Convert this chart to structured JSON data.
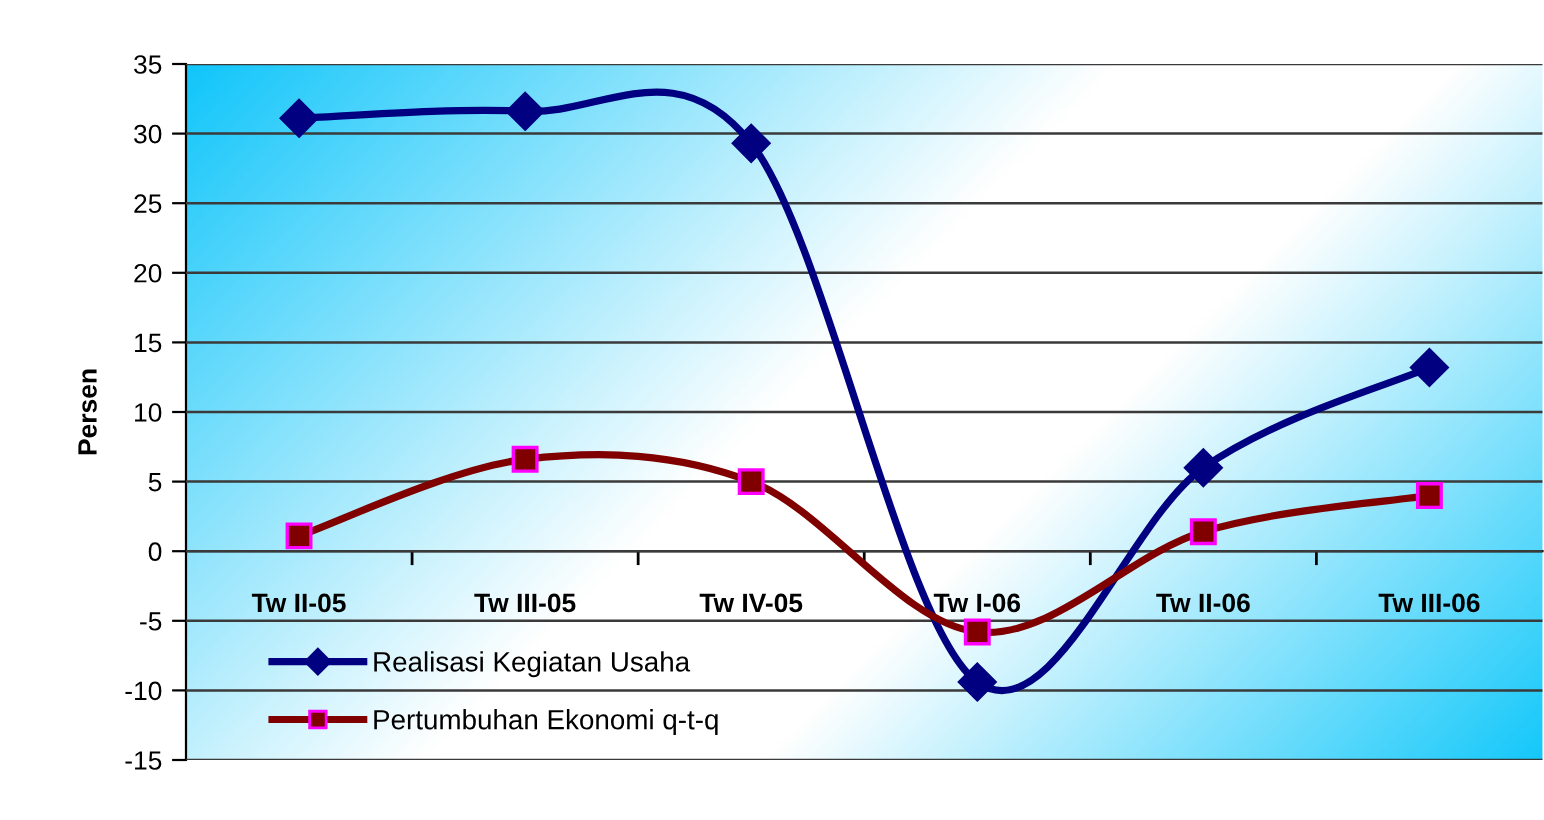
{
  "chart_data": {
    "type": "line",
    "ylabel": "Persen",
    "categories": [
      "Tw II-05",
      "Tw III-05",
      "Tw IV-05",
      "Tw I-06",
      "Tw II-06",
      "Tw III-06"
    ],
    "series": [
      {
        "name": "Realisasi Kegiatan Usaha",
        "color": "#000080",
        "marker": "diamond",
        "values": [
          31.1,
          31.6,
          29.3,
          -9.4,
          6.0,
          13.2
        ]
      },
      {
        "name": "Pertumbuhan Ekonomi q-t-q",
        "color": "#800000",
        "marker": "square",
        "values": [
          1.1,
          6.6,
          5.0,
          -5.8,
          1.4,
          4.0
        ]
      }
    ],
    "ylim": [
      -15,
      35
    ],
    "yticks": [
      -15,
      -10,
      -5,
      0,
      5,
      10,
      15,
      20,
      25,
      30,
      35
    ],
    "grid": "y",
    "legend": "bottom left",
    "line_style": "solid"
  }
}
